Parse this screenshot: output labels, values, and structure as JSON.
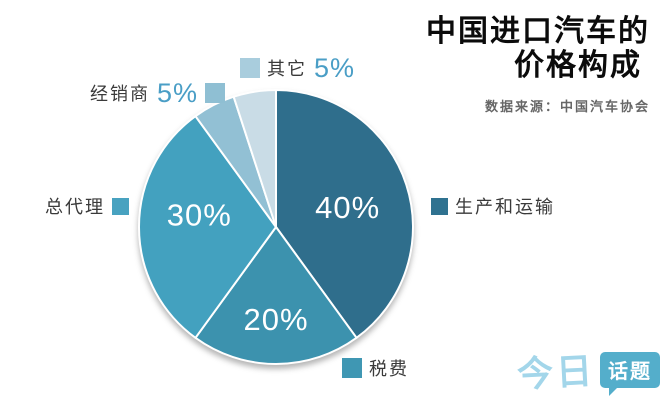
{
  "header": {
    "title_line1": "中国进口汽车的",
    "title_line2": "价格构成",
    "source": "数据来源：中国汽车协会"
  },
  "chart_data": {
    "type": "pie",
    "title": "中国进口汽车的价格构成",
    "source": "数据来源：中国汽车协会",
    "unit": "percent",
    "direction": "clockwise",
    "start_angle_deg": 0,
    "slices": [
      {
        "label": "生产和运输",
        "value": 40,
        "pct_label": "40%",
        "color": "#2F6E8C",
        "legend_color": "#2F7290",
        "inside_label": true
      },
      {
        "label": "税费",
        "value": 20,
        "pct_label": "20%",
        "color": "#3C92AE",
        "legend_color": "#3F97B3",
        "inside_label": true
      },
      {
        "label": "总代理",
        "value": 30,
        "pct_label": "30%",
        "color": "#43A1BF",
        "legend_color": "#48A2C0",
        "inside_label": true
      },
      {
        "label": "经销商",
        "value": 5,
        "pct_label": "5%",
        "color": "#92C0D4",
        "legend_color": "#8FBFD3",
        "inside_label": false
      },
      {
        "label": "其它",
        "value": 5,
        "pct_label": "5%",
        "color": "#C9DCE6",
        "legend_color": "#A9CDDD",
        "inside_label": false
      }
    ],
    "pct_accent_color": "#4A9EC6"
  },
  "logo": {
    "part1": "今日",
    "part2": "话题",
    "script_color": "#A3D6EA",
    "bubble_color": "#54AECB"
  }
}
